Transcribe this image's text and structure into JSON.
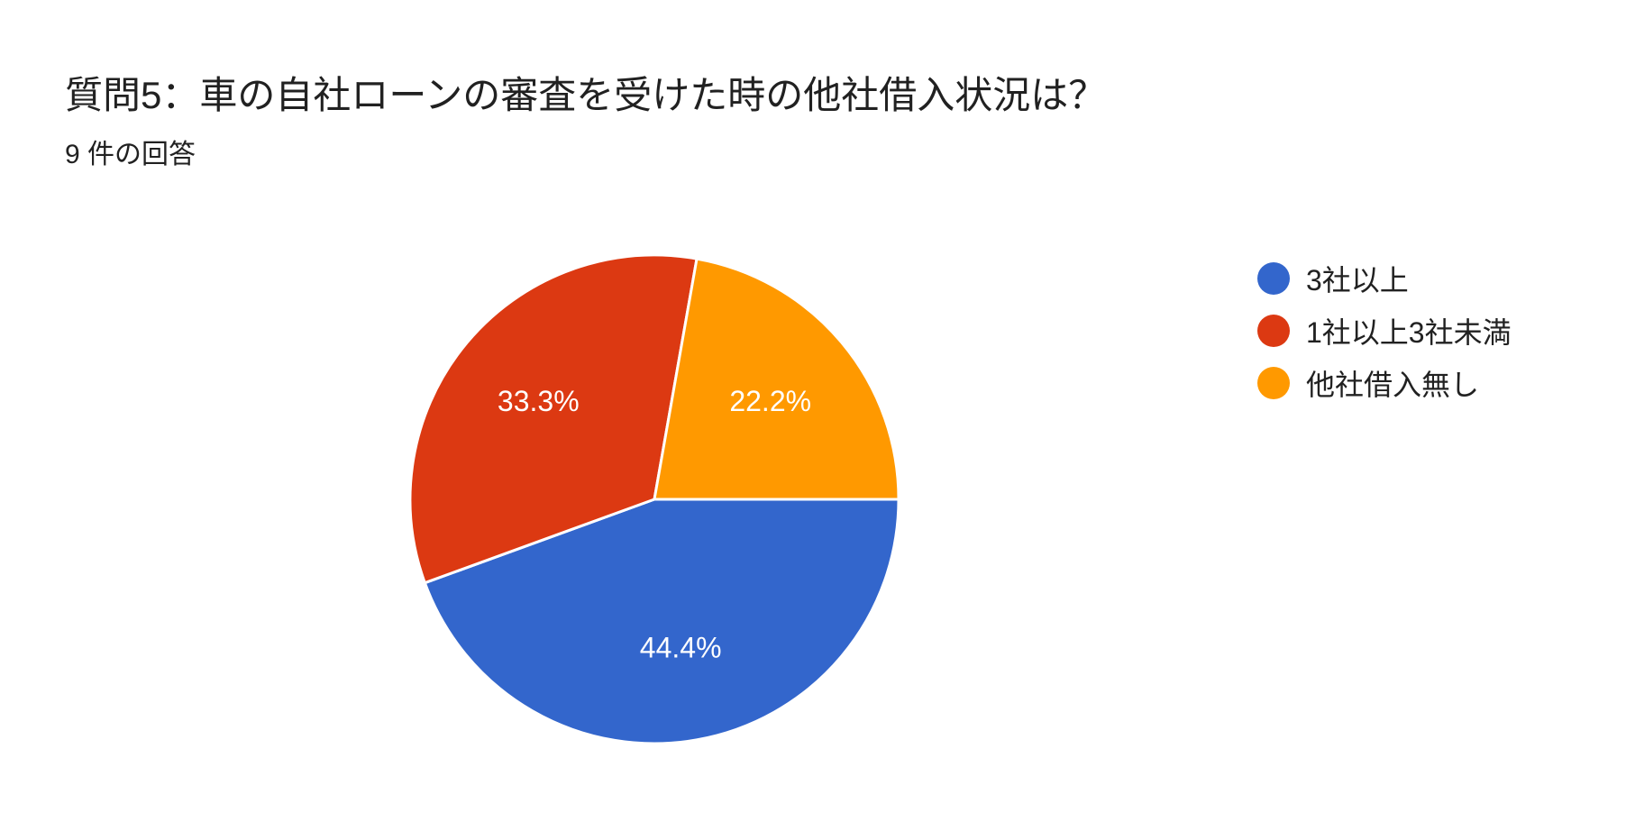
{
  "header": {
    "title": "質問5：車の自社ローンの審査を受けた時の他社借入状況は？",
    "subtitle": "9 件の回答"
  },
  "chart_data": {
    "type": "pie",
    "categories": [
      "3社以上",
      "1社以上3社未満",
      "他社借入無し"
    ],
    "values": [
      44.4,
      33.3,
      22.2
    ],
    "labels": [
      "44.4%",
      "33.3%",
      "22.2%"
    ],
    "colors": [
      "#3366cc",
      "#dc3912",
      "#ff9900"
    ],
    "legend": "right"
  }
}
